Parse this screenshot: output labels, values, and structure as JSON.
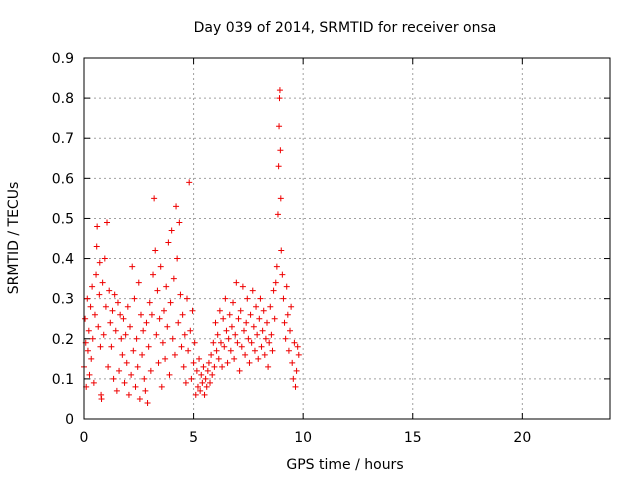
{
  "chart_data": {
    "type": "scatter",
    "title": "Day 039 of 2014, SRMTID for receiver onsa",
    "xlabel": "GPS time / hours",
    "ylabel": "SRMTID / TECUs",
    "xlim": [
      0,
      24
    ],
    "ylim": [
      0,
      0.9
    ],
    "x_ticks": [
      0,
      5,
      10,
      15,
      20
    ],
    "x_tick_labels": [
      "0",
      "5",
      "10",
      "15",
      "20"
    ],
    "y_ticks": [
      0,
      0.1,
      0.2,
      0.3,
      0.4,
      0.5,
      0.6,
      0.7,
      0.8,
      0.9
    ],
    "y_tick_labels": [
      "0",
      "0.1",
      "0.2",
      "0.3",
      "0.4",
      "0.5",
      "0.6",
      "0.7",
      "0.8",
      "0.9"
    ],
    "grid": true,
    "marker": "plus",
    "series": [
      {
        "name": "SRMTID",
        "color": "#ee0000",
        "points": [
          [
            0.0,
            0.13
          ],
          [
            0.05,
            0.25
          ],
          [
            0.08,
            0.19
          ],
          [
            0.1,
            0.08
          ],
          [
            0.15,
            0.3
          ],
          [
            0.18,
            0.17
          ],
          [
            0.22,
            0.22
          ],
          [
            0.25,
            0.11
          ],
          [
            0.3,
            0.28
          ],
          [
            0.33,
            0.15
          ],
          [
            0.37,
            0.33
          ],
          [
            0.4,
            0.2
          ],
          [
            0.45,
            0.09
          ],
          [
            0.5,
            0.26
          ],
          [
            0.55,
            0.36
          ],
          [
            0.58,
            0.43
          ],
          [
            0.6,
            0.48
          ],
          [
            0.65,
            0.23
          ],
          [
            0.7,
            0.31
          ],
          [
            0.72,
            0.39
          ],
          [
            0.75,
            0.18
          ],
          [
            0.78,
            0.06
          ],
          [
            0.8,
            0.05
          ],
          [
            0.85,
            0.34
          ],
          [
            0.9,
            0.21
          ],
          [
            0.95,
            0.4
          ],
          [
            1.0,
            0.28
          ],
          [
            1.05,
            0.49
          ],
          [
            1.1,
            0.13
          ],
          [
            1.15,
            0.32
          ],
          [
            1.2,
            0.24
          ],
          [
            1.25,
            0.18
          ],
          [
            1.3,
            0.27
          ],
          [
            1.35,
            0.1
          ],
          [
            1.4,
            0.31
          ],
          [
            1.45,
            0.22
          ],
          [
            1.5,
            0.07
          ],
          [
            1.55,
            0.29
          ],
          [
            1.6,
            0.12
          ],
          [
            1.65,
            0.26
          ],
          [
            1.7,
            0.2
          ],
          [
            1.75,
            0.16
          ],
          [
            1.8,
            0.25
          ],
          [
            1.85,
            0.09
          ],
          [
            1.9,
            0.21
          ],
          [
            1.95,
            0.14
          ],
          [
            2.0,
            0.28
          ],
          [
            2.05,
            0.06
          ],
          [
            2.1,
            0.23
          ],
          [
            2.15,
            0.11
          ],
          [
            2.2,
            0.38
          ],
          [
            2.25,
            0.17
          ],
          [
            2.3,
            0.3
          ],
          [
            2.35,
            0.08
          ],
          [
            2.4,
            0.2
          ],
          [
            2.45,
            0.13
          ],
          [
            2.5,
            0.34
          ],
          [
            2.55,
            0.05
          ],
          [
            2.6,
            0.26
          ],
          [
            2.65,
            0.16
          ],
          [
            2.7,
            0.22
          ],
          [
            2.75,
            0.1
          ],
          [
            2.8,
            0.07
          ],
          [
            2.85,
            0.24
          ],
          [
            2.9,
            0.04
          ],
          [
            2.95,
            0.18
          ],
          [
            3.0,
            0.29
          ],
          [
            3.05,
            0.12
          ],
          [
            3.1,
            0.26
          ],
          [
            3.15,
            0.36
          ],
          [
            3.2,
            0.55
          ],
          [
            3.25,
            0.42
          ],
          [
            3.3,
            0.21
          ],
          [
            3.35,
            0.32
          ],
          [
            3.4,
            0.14
          ],
          [
            3.45,
            0.25
          ],
          [
            3.5,
            0.38
          ],
          [
            3.55,
            0.08
          ],
          [
            3.6,
            0.19
          ],
          [
            3.65,
            0.27
          ],
          [
            3.7,
            0.15
          ],
          [
            3.75,
            0.33
          ],
          [
            3.8,
            0.23
          ],
          [
            3.85,
            0.44
          ],
          [
            3.9,
            0.11
          ],
          [
            3.95,
            0.29
          ],
          [
            4.0,
            0.47
          ],
          [
            4.05,
            0.2
          ],
          [
            4.1,
            0.35
          ],
          [
            4.15,
            0.16
          ],
          [
            4.2,
            0.53
          ],
          [
            4.25,
            0.4
          ],
          [
            4.3,
            0.24
          ],
          [
            4.35,
            0.49
          ],
          [
            4.4,
            0.31
          ],
          [
            4.45,
            0.18
          ],
          [
            4.5,
            0.26
          ],
          [
            4.55,
            0.13
          ],
          [
            4.6,
            0.21
          ],
          [
            4.65,
            0.09
          ],
          [
            4.7,
            0.3
          ],
          [
            4.75,
            0.17
          ],
          [
            4.8,
            0.59
          ],
          [
            4.85,
            0.22
          ],
          [
            4.9,
            0.1
          ],
          [
            4.95,
            0.27
          ],
          [
            5.0,
            0.14
          ],
          [
            5.05,
            0.19
          ],
          [
            5.1,
            0.06
          ],
          [
            5.15,
            0.12
          ],
          [
            5.2,
            0.08
          ],
          [
            5.25,
            0.15
          ],
          [
            5.3,
            0.07
          ],
          [
            5.35,
            0.11
          ],
          [
            5.4,
            0.09
          ],
          [
            5.45,
            0.13
          ],
          [
            5.5,
            0.06
          ],
          [
            5.55,
            0.1
          ],
          [
            5.6,
            0.08
          ],
          [
            5.65,
            0.12
          ],
          [
            5.7,
            0.14
          ],
          [
            5.75,
            0.09
          ],
          [
            5.8,
            0.16
          ],
          [
            5.85,
            0.11
          ],
          [
            5.9,
            0.19
          ],
          [
            5.95,
            0.13
          ],
          [
            6.0,
            0.24
          ],
          [
            6.05,
            0.17
          ],
          [
            6.1,
            0.21
          ],
          [
            6.15,
            0.15
          ],
          [
            6.2,
            0.27
          ],
          [
            6.25,
            0.19
          ],
          [
            6.3,
            0.13
          ],
          [
            6.35,
            0.25
          ],
          [
            6.4,
            0.18
          ],
          [
            6.45,
            0.3
          ],
          [
            6.5,
            0.22
          ],
          [
            6.55,
            0.14
          ],
          [
            6.6,
            0.2
          ],
          [
            6.65,
            0.26
          ],
          [
            6.7,
            0.17
          ],
          [
            6.75,
            0.23
          ],
          [
            6.8,
            0.29
          ],
          [
            6.85,
            0.15
          ],
          [
            6.9,
            0.21
          ],
          [
            6.95,
            0.34
          ],
          [
            7.0,
            0.19
          ],
          [
            7.05,
            0.25
          ],
          [
            7.1,
            0.12
          ],
          [
            7.15,
            0.27
          ],
          [
            7.2,
            0.18
          ],
          [
            7.25,
            0.33
          ],
          [
            7.3,
            0.22
          ],
          [
            7.35,
            0.16
          ],
          [
            7.4,
            0.24
          ],
          [
            7.45,
            0.3
          ],
          [
            7.5,
            0.2
          ],
          [
            7.55,
            0.14
          ],
          [
            7.6,
            0.26
          ],
          [
            7.65,
            0.19
          ],
          [
            7.7,
            0.32
          ],
          [
            7.75,
            0.23
          ],
          [
            7.8,
            0.17
          ],
          [
            7.85,
            0.28
          ],
          [
            7.9,
            0.21
          ],
          [
            7.95,
            0.15
          ],
          [
            8.0,
            0.25
          ],
          [
            8.05,
            0.3
          ],
          [
            8.1,
            0.18
          ],
          [
            8.15,
            0.22
          ],
          [
            8.2,
            0.27
          ],
          [
            8.25,
            0.16
          ],
          [
            8.3,
            0.2
          ],
          [
            8.35,
            0.24
          ],
          [
            8.4,
            0.13
          ],
          [
            8.45,
            0.19
          ],
          [
            8.5,
            0.28
          ],
          [
            8.55,
            0.21
          ],
          [
            8.6,
            0.17
          ],
          [
            8.65,
            0.32
          ],
          [
            8.7,
            0.25
          ],
          [
            8.75,
            0.34
          ],
          [
            8.8,
            0.38
          ],
          [
            8.85,
            0.51
          ],
          [
            8.88,
            0.63
          ],
          [
            8.9,
            0.73
          ],
          [
            8.92,
            0.8
          ],
          [
            8.94,
            0.82
          ],
          [
            8.96,
            0.67
          ],
          [
            8.98,
            0.55
          ],
          [
            9.0,
            0.42
          ],
          [
            9.05,
            0.36
          ],
          [
            9.1,
            0.3
          ],
          [
            9.15,
            0.24
          ],
          [
            9.2,
            0.2
          ],
          [
            9.25,
            0.33
          ],
          [
            9.3,
            0.26
          ],
          [
            9.35,
            0.17
          ],
          [
            9.4,
            0.22
          ],
          [
            9.45,
            0.28
          ],
          [
            9.5,
            0.14
          ],
          [
            9.55,
            0.1
          ],
          [
            9.6,
            0.19
          ],
          [
            9.65,
            0.08
          ],
          [
            9.7,
            0.12
          ],
          [
            9.75,
            0.18
          ],
          [
            9.8,
            0.16
          ]
        ]
      }
    ]
  }
}
